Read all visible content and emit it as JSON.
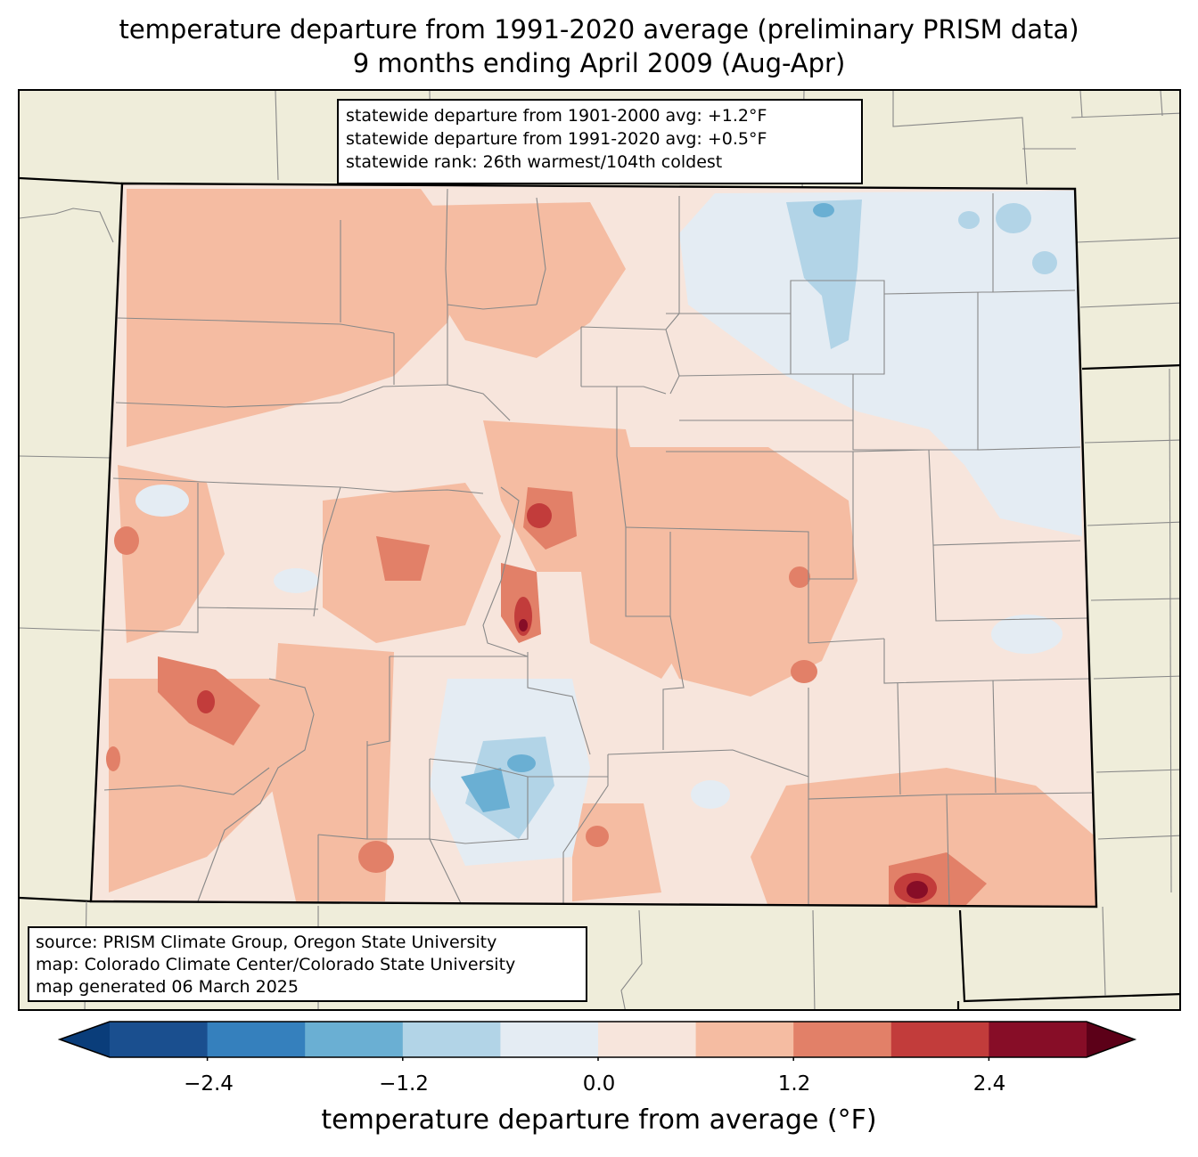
{
  "title": {
    "line1": "temperature departure from 1991-2020 average (preliminary PRISM data)",
    "line2": "9 months ending April 2009 (Aug-Apr)"
  },
  "stats": {
    "line1": "statewide departure from 1901-2000 avg: +1.2°F",
    "line2": "statewide departure from 1991-2020 avg: +0.5°F",
    "line3": "statewide rank: 26th warmest/104th coldest"
  },
  "source": {
    "line1": "source: PRISM Climate Group, Oregon State University",
    "line2": "map: Colorado Climate Center/Colorado State University",
    "line3": "map generated 06 March 2025"
  },
  "colorbar": {
    "label": "temperature departure from average (°F)",
    "ticks": [
      "−2.4",
      "−1.2",
      "0.0",
      "1.2",
      "2.4"
    ],
    "levels": [
      -3.0,
      -2.4,
      -1.8,
      -1.2,
      -0.6,
      0.0,
      0.6,
      1.2,
      1.8,
      2.4,
      3.0
    ],
    "colors": [
      "#0a3d7a",
      "#1a4f8f",
      "#3580bd",
      "#6aafd3",
      "#b2d4e7",
      "#e4ecf3",
      "#f7e5dc",
      "#f5bca2",
      "#e28068",
      "#c23c3b",
      "#870d27",
      "#5c0018"
    ]
  },
  "map": {
    "state": "Colorado",
    "land_color": "#efedda",
    "background_departure_color": "#f7e5dc"
  }
}
